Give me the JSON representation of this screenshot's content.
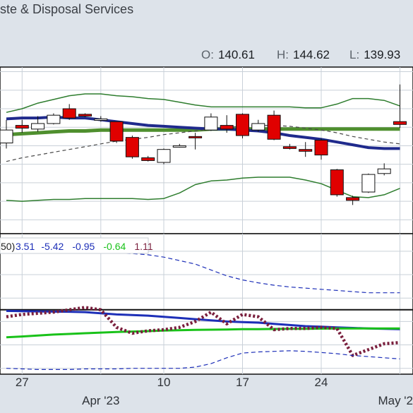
{
  "header": {
    "title": "ste & Disposal Services",
    "ohlc": [
      {
        "key": "O:",
        "value": "140.61"
      },
      {
        "key": "H:",
        "value": "144.62"
      },
      {
        "key": "L:",
        "value": "139.93"
      }
    ]
  },
  "chart_data": [
    {
      "type": "candlestick",
      "title": "",
      "x_dates": [
        "03-24",
        "03-27",
        "03-28",
        "03-29",
        "03-30",
        "03-31",
        "04-03",
        "04-04",
        "04-05",
        "04-06",
        "04-10",
        "04-11",
        "04-12",
        "04-13",
        "04-14",
        "04-17",
        "04-18",
        "04-19",
        "04-20",
        "04-21",
        "04-24",
        "04-25",
        "04-26",
        "04-27",
        "04-28",
        "05-01"
      ],
      "candles": [
        {
          "date": "03-24",
          "open": 138.3,
          "high": 140.8,
          "low": 137.7,
          "close": 139.7
        },
        {
          "date": "03-27",
          "open": 140.2,
          "high": 140.8,
          "low": 139.4,
          "close": 139.9
        },
        {
          "date": "03-28",
          "open": 139.8,
          "high": 141.2,
          "low": 139.5,
          "close": 140.4
        },
        {
          "date": "03-29",
          "open": 140.4,
          "high": 141.5,
          "low": 140.3,
          "close": 141.3
        },
        {
          "date": "03-30",
          "open": 142.0,
          "high": 142.5,
          "low": 140.8,
          "close": 141.0
        },
        {
          "date": "03-31",
          "open": 141.4,
          "high": 141.5,
          "low": 141.1,
          "close": 141.2
        },
        {
          "date": "04-03",
          "open": 140.9,
          "high": 141.2,
          "low": 140.6,
          "close": 140.9
        },
        {
          "date": "04-04",
          "open": 140.6,
          "high": 140.6,
          "low": 138.3,
          "close": 138.5
        },
        {
          "date": "04-05",
          "open": 138.9,
          "high": 139.1,
          "low": 136.6,
          "close": 136.8
        },
        {
          "date": "04-06",
          "open": 136.7,
          "high": 136.9,
          "low": 136.3,
          "close": 136.4
        },
        {
          "date": "04-10",
          "open": 136.2,
          "high": 137.7,
          "low": 136.0,
          "close": 137.6
        },
        {
          "date": "04-11",
          "open": 138.0,
          "high": 138.2,
          "low": 137.8,
          "close": 138.0
        },
        {
          "date": "04-12",
          "open": 139.0,
          "high": 139.4,
          "low": 137.6,
          "close": 138.9
        },
        {
          "date": "04-13",
          "open": 139.7,
          "high": 141.5,
          "low": 139.6,
          "close": 141.1
        },
        {
          "date": "04-14",
          "open": 140.2,
          "high": 141.3,
          "low": 139.4,
          "close": 139.8
        },
        {
          "date": "04-17",
          "open": 141.4,
          "high": 141.5,
          "low": 138.8,
          "close": 139.1
        },
        {
          "date": "04-18",
          "open": 139.7,
          "high": 140.8,
          "low": 139.5,
          "close": 140.4
        },
        {
          "date": "04-19",
          "open": 141.3,
          "high": 141.8,
          "low": 138.6,
          "close": 138.7
        },
        {
          "date": "04-20",
          "open": 137.9,
          "high": 138.2,
          "low": 137.6,
          "close": 137.7
        },
        {
          "date": "04-21",
          "open": 137.6,
          "high": 138.4,
          "low": 136.8,
          "close": 137.4
        },
        {
          "date": "04-24",
          "open": 138.6,
          "high": 138.8,
          "low": 136.5,
          "close": 137.0
        },
        {
          "date": "04-25",
          "open": 135.4,
          "high": 135.5,
          "low": 132.5,
          "close": 132.7
        },
        {
          "date": "04-26",
          "open": 132.4,
          "high": 132.6,
          "low": 131.6,
          "close": 132.1
        },
        {
          "date": "04-27",
          "open": 133.0,
          "high": 135.0,
          "low": 132.9,
          "close": 134.9
        },
        {
          "date": "04-28",
          "open": 135.0,
          "high": 136.1,
          "low": 134.8,
          "close": 135.5
        },
        {
          "date": "05-01",
          "open": 140.61,
          "high": 144.62,
          "low": 139.93,
          "close": 140.3
        }
      ],
      "overlays": [
        {
          "name": "upper-band",
          "color": "#2e7d2e",
          "values": [
            141.6,
            142.0,
            142.6,
            143.0,
            143.4,
            143.6,
            143.6,
            143.4,
            143.3,
            143.1,
            143.0,
            142.7,
            142.4,
            142.2,
            142.2,
            142.2,
            142.2,
            142.2,
            142.2,
            142.1,
            142.1,
            142.5,
            143.1,
            143.1,
            142.9,
            142.3
          ]
        },
        {
          "name": "lower-band",
          "color": "#2e7d2e",
          "values": [
            132.1,
            132.0,
            132.1,
            132.2,
            132.2,
            132.3,
            132.3,
            132.3,
            132.3,
            132.2,
            132.3,
            132.9,
            133.8,
            134.2,
            134.3,
            134.5,
            134.6,
            134.6,
            134.6,
            134.3,
            133.9,
            133.2,
            132.5,
            132.4,
            132.7,
            133.4
          ]
        },
        {
          "name": "thick-green-ma",
          "color": "#4f8f2e",
          "values": [
            139.2,
            139.3,
            139.4,
            139.5,
            139.6,
            139.6,
            139.7,
            139.7,
            139.7,
            139.7,
            139.7,
            139.7,
            139.7,
            139.8,
            139.8,
            139.8,
            139.8,
            139.8,
            139.8,
            139.8,
            139.8,
            139.8,
            139.8,
            139.8,
            139.8,
            139.8
          ]
        },
        {
          "name": "navy-ma",
          "color": "#1f2a8c",
          "values": [
            140.9,
            141.0,
            141.0,
            141.1,
            141.0,
            141.0,
            140.8,
            140.6,
            140.4,
            140.2,
            140.1,
            140.0,
            139.9,
            139.8,
            139.8,
            139.7,
            139.6,
            139.4,
            139.1,
            138.9,
            138.7,
            138.4,
            138.1,
            137.8,
            137.7,
            137.7
          ]
        },
        {
          "name": "dashed-ma",
          "color": "#4a4a4a",
          "values": [
            136.3,
            136.7,
            137.0,
            137.3,
            137.6,
            137.9,
            138.2,
            138.5,
            138.7,
            138.9,
            139.2,
            139.4,
            139.6,
            139.8,
            140.0,
            140.1,
            140.2,
            140.2,
            140.1,
            139.9,
            139.7,
            139.4,
            139.0,
            138.7,
            138.4,
            138.2
          ]
        }
      ],
      "ylim": [
        128.5,
        146.5
      ]
    },
    {
      "type": "line",
      "title": "",
      "legend_fragment": "50)",
      "readouts": [
        {
          "text": "3.51",
          "color": "#1d2fb8"
        },
        {
          "text": "-5.42",
          "color": "#1d2fb8"
        },
        {
          "text": "-0.95",
          "color": "#1d2fb8"
        },
        {
          "text": "-0.64",
          "color": "#19c219"
        },
        {
          "text": "1.11",
          "color": "#7a1f3d"
        }
      ],
      "series": [
        {
          "name": "dashed-upper",
          "color": "#1d2fb8",
          "values": [
            4.35,
            4.25,
            4.15,
            4.05,
            3.95,
            3.9,
            3.85,
            3.85,
            3.8,
            3.7,
            3.5,
            3.2,
            2.9,
            2.4,
            1.9,
            1.55,
            1.3,
            1.1,
            0.95,
            0.85,
            0.75,
            0.65,
            0.55,
            0.45,
            0.45,
            0.45
          ]
        },
        {
          "name": "blue-line",
          "color": "#1d2fb8",
          "values": [
            -1.1,
            -1.12,
            -1.14,
            -1.16,
            -1.17,
            -1.2,
            -1.3,
            -1.4,
            -1.45,
            -1.5,
            -1.6,
            -1.7,
            -1.8,
            -1.9,
            -2.0,
            -2.05,
            -2.1,
            -2.2,
            -2.3,
            -2.4,
            -2.45,
            -2.5,
            -2.55,
            -2.6,
            -2.62,
            -2.65
          ]
        },
        {
          "name": "green-line",
          "color": "#19c219",
          "values": [
            -3.35,
            -3.28,
            -3.2,
            -3.12,
            -3.06,
            -3.0,
            -2.95,
            -2.9,
            -2.86,
            -2.82,
            -2.78,
            -2.75,
            -2.72,
            -2.7,
            -2.68,
            -2.66,
            -2.65,
            -2.64,
            -2.63,
            -2.62,
            -2.61,
            -2.6,
            -2.6,
            -2.6,
            -2.6,
            -2.6
          ]
        },
        {
          "name": "dotted-oscillator",
          "color": "#7a1f3d",
          "values": [
            -1.6,
            -1.4,
            -1.3,
            -1.2,
            -1.0,
            -0.8,
            -1.0,
            -2.5,
            -3.0,
            -2.8,
            -2.7,
            -2.5,
            -2.0,
            -1.2,
            -2.2,
            -1.4,
            -1.6,
            -2.7,
            -2.6,
            -2.6,
            -2.5,
            -2.6,
            -4.9,
            -4.4,
            -3.9,
            -3.8
          ]
        },
        {
          "name": "dashed-lower",
          "color": "#1d2fb8",
          "values": [
            -6.0,
            -6.05,
            -6.1,
            -6.1,
            -6.1,
            -6.05,
            -6.05,
            -6.05,
            -6.0,
            -6.0,
            -6.0,
            -6.0,
            -5.9,
            -5.6,
            -5.1,
            -4.7,
            -4.6,
            -4.55,
            -4.5,
            -4.55,
            -4.65,
            -4.75,
            -4.9,
            -5.0,
            -5.1,
            -5.2
          ]
        }
      ],
      "ylim": [
        -6.5,
        5.5
      ]
    }
  ],
  "xaxis": {
    "labels": [
      {
        "text": "27",
        "at": "03-27"
      },
      {
        "text": "Apr '23",
        "at": "04-03"
      },
      {
        "text": "10",
        "at": "04-10"
      },
      {
        "text": "17",
        "at": "04-17"
      },
      {
        "text": "24",
        "at": "04-24"
      },
      {
        "text": "May '2",
        "at": "05-01"
      }
    ]
  },
  "colors": {
    "background": "#dde3ea",
    "panel": "#ffffff",
    "grid": "#c9d0d8",
    "up_candle": "#ffffff",
    "down_candle": "#e00000"
  }
}
